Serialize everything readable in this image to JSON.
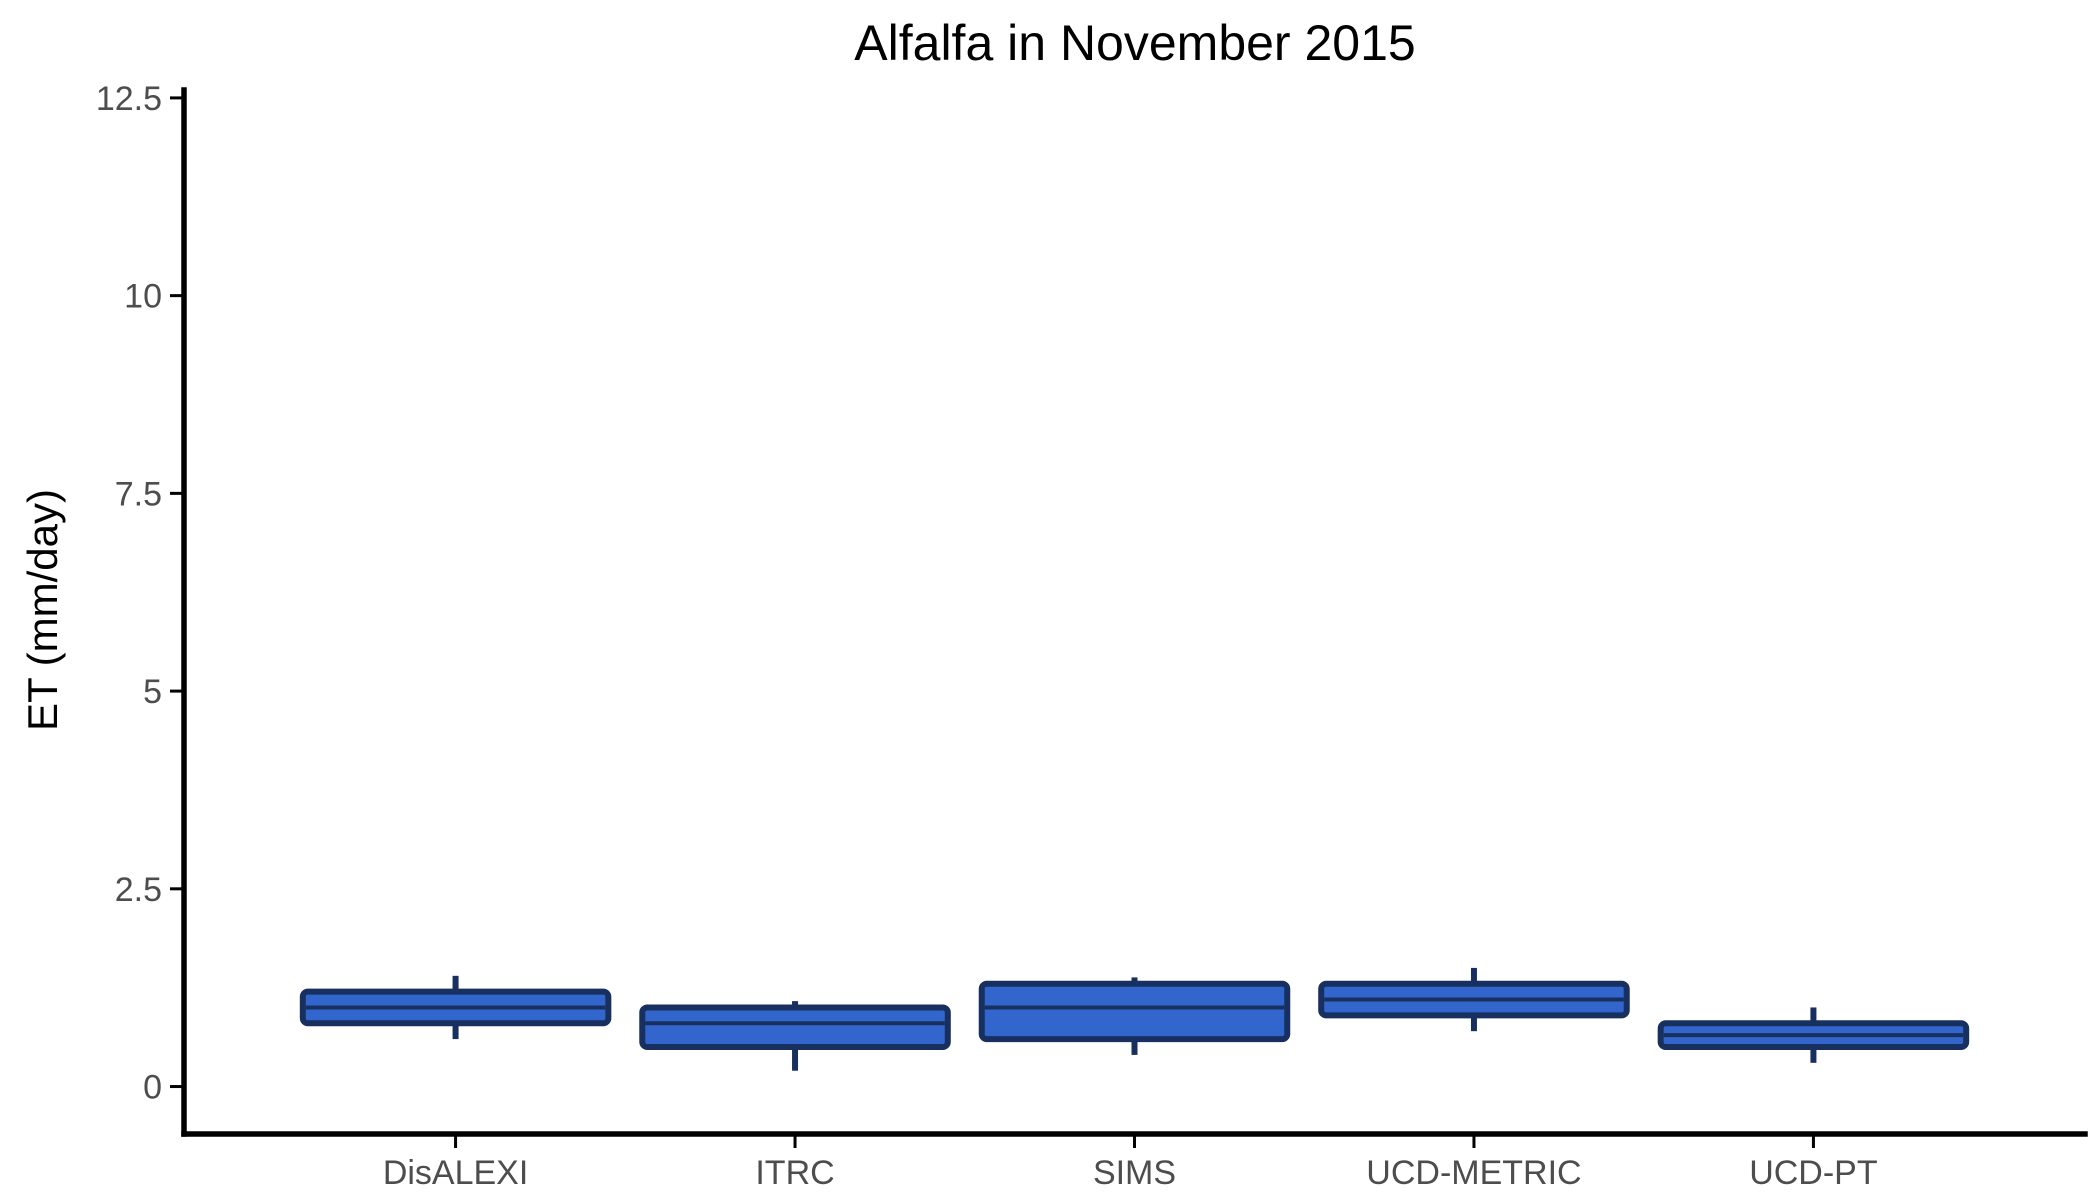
{
  "chart_data": {
    "type": "boxplot",
    "title": "Alfalfa in November 2015",
    "xlabel": "",
    "ylabel": "ET (mm/day)",
    "ylim": [
      -0.6,
      12.6
    ],
    "yticks": [
      0,
      2.5,
      5,
      7.5,
      10,
      12.5
    ],
    "ytick_labels": [
      "0",
      "2.5",
      "5",
      "7.5",
      "10",
      "12.5"
    ],
    "categories": [
      "DisALEXI",
      "ITRC",
      "SIMS",
      "UCD-METRIC",
      "UCD-PT"
    ],
    "boxes": [
      {
        "category": "DisALEXI",
        "whisker_low": 0.6,
        "q1": 0.8,
        "median": 1.0,
        "q3": 1.2,
        "whisker_high": 1.4
      },
      {
        "category": "ITRC",
        "whisker_low": 0.2,
        "q1": 0.5,
        "median": 0.8,
        "q3": 1.0,
        "whisker_high": 1.08
      },
      {
        "category": "SIMS",
        "whisker_low": 0.4,
        "q1": 0.6,
        "median": 1.0,
        "q3": 1.3,
        "whisker_high": 1.38
      },
      {
        "category": "UCD-METRIC",
        "whisker_low": 0.7,
        "q1": 0.9,
        "median": 1.1,
        "q3": 1.3,
        "whisker_high": 1.5
      },
      {
        "category": "UCD-PT",
        "whisker_low": 0.3,
        "q1": 0.5,
        "median": 0.65,
        "q3": 0.8,
        "whisker_high": 1.0
      }
    ],
    "colors": {
      "fill": "#3366cc",
      "stroke": "#17305f"
    },
    "grid": false,
    "legend": "none"
  }
}
